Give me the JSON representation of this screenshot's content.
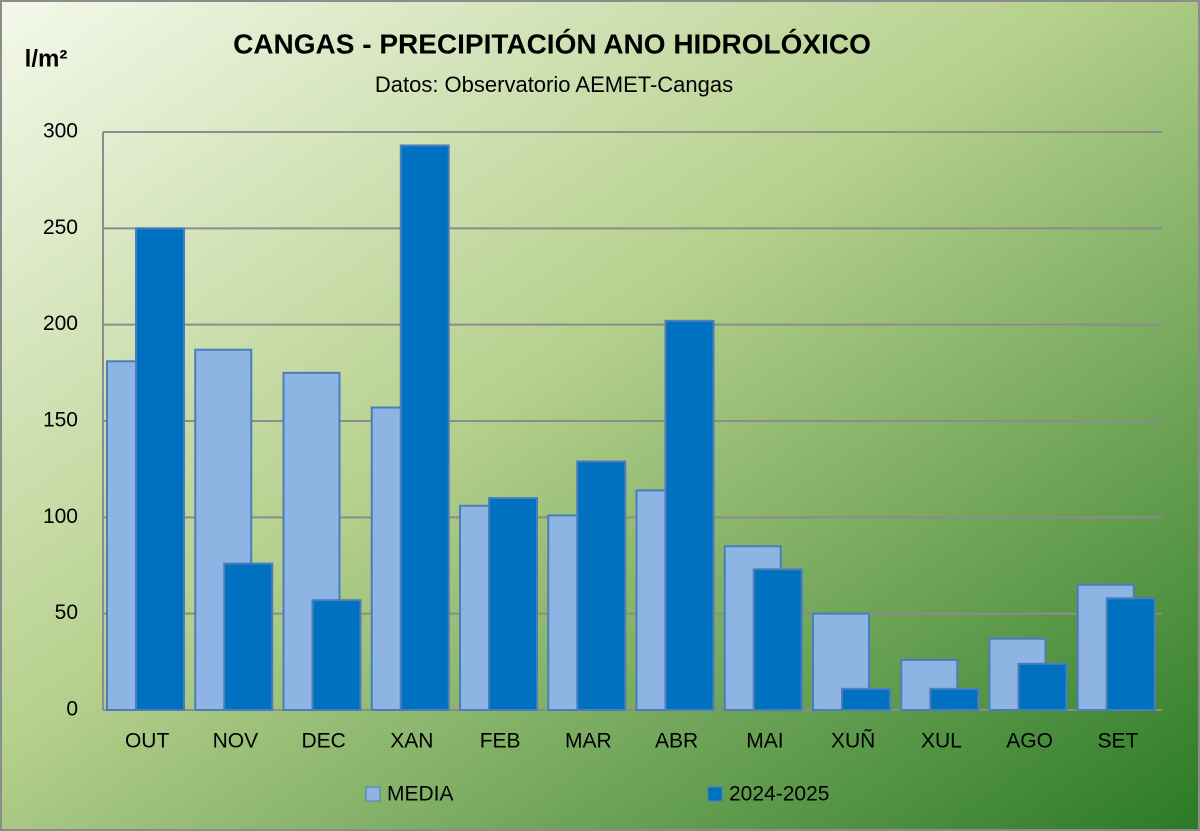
{
  "chart_data": {
    "type": "bar",
    "title": "CANGAS - PRECIPITACIÓN ANO HIDROLÓXICO",
    "subtitle": "Datos: Observatorio AEMET-Cangas",
    "y_label": "l/m²",
    "categories": [
      "OUT",
      "NOV",
      "DEC",
      "XAN",
      "FEB",
      "MAR",
      "ABR",
      "MAI",
      "XUÑ",
      "XUL",
      "AGO",
      "SET"
    ],
    "series": [
      {
        "name": "MEDIA",
        "color": "#8db4e2",
        "values": [
          181,
          187,
          175,
          157,
          106,
          101,
          114,
          85,
          50,
          26,
          37,
          65
        ]
      },
      {
        "name": "2024-2025",
        "color": "#0070c0",
        "values": [
          250,
          76,
          57,
          293,
          110,
          129,
          202,
          73,
          11,
          11,
          24,
          58
        ]
      }
    ],
    "ylim": [
      0,
      300
    ],
    "yticks": [
      0,
      50,
      100,
      150,
      200,
      250,
      300
    ],
    "grid": true,
    "legend": "bottom"
  }
}
